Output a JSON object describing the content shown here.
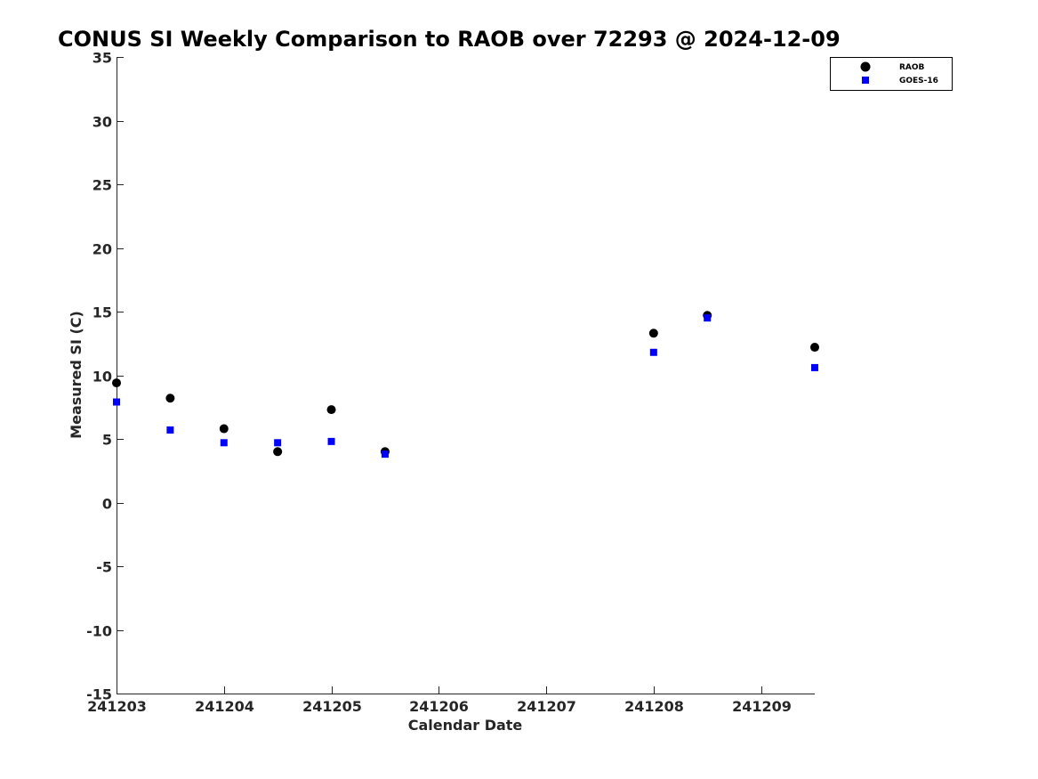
{
  "chart_data": {
    "type": "scatter",
    "title": "CONUS SI Weekly Comparison to RAOB over 72293 @ 2024-12-09",
    "xlabel": "Calendar Date",
    "ylabel": "Measured SI (C)",
    "xlim": [
      241203,
      241209.5
    ],
    "ylim": [
      -15,
      35
    ],
    "x_ticks": [
      {
        "value": 241203,
        "label": "241203"
      },
      {
        "value": 241204,
        "label": "241204"
      },
      {
        "value": 241205,
        "label": "241205"
      },
      {
        "value": 241206,
        "label": "241206"
      },
      {
        "value": 241207,
        "label": "241207"
      },
      {
        "value": 241208,
        "label": "241208"
      },
      {
        "value": 241209,
        "label": "241209"
      }
    ],
    "y_ticks": [
      {
        "value": 35,
        "label": "35"
      },
      {
        "value": 30,
        "label": "30"
      },
      {
        "value": 25,
        "label": "25"
      },
      {
        "value": 20,
        "label": "20"
      },
      {
        "value": 15,
        "label": "15"
      },
      {
        "value": 10,
        "label": "10"
      },
      {
        "value": 5,
        "label": "5"
      },
      {
        "value": 0,
        "label": "0"
      },
      {
        "value": -5,
        "label": "-5"
      },
      {
        "value": -10,
        "label": "-10"
      },
      {
        "value": -15,
        "label": "-15"
      }
    ],
    "grid": false,
    "legend_position": "top-right",
    "series": [
      {
        "name": "RAOB",
        "marker": "circle",
        "color": "#000000",
        "points": [
          {
            "x": 241203.0,
            "y": 9.4
          },
          {
            "x": 241203.5,
            "y": 8.2
          },
          {
            "x": 241204.0,
            "y": 5.8
          },
          {
            "x": 241204.5,
            "y": 4.0
          },
          {
            "x": 241205.0,
            "y": 7.3
          },
          {
            "x": 241205.5,
            "y": 4.0
          },
          {
            "x": 241208.0,
            "y": 13.3
          },
          {
            "x": 241208.5,
            "y": 14.7
          },
          {
            "x": 241209.5,
            "y": 12.2
          }
        ]
      },
      {
        "name": "GOES-16",
        "marker": "square",
        "color": "#0000ff",
        "points": [
          {
            "x": 241203.0,
            "y": 7.9
          },
          {
            "x": 241203.5,
            "y": 5.7
          },
          {
            "x": 241204.0,
            "y": 4.7
          },
          {
            "x": 241204.5,
            "y": 4.7
          },
          {
            "x": 241205.0,
            "y": 4.8
          },
          {
            "x": 241205.5,
            "y": 3.8
          },
          {
            "x": 241208.0,
            "y": 11.8
          },
          {
            "x": 241208.5,
            "y": 14.5
          },
          {
            "x": 241209.5,
            "y": 10.6
          }
        ]
      }
    ]
  }
}
